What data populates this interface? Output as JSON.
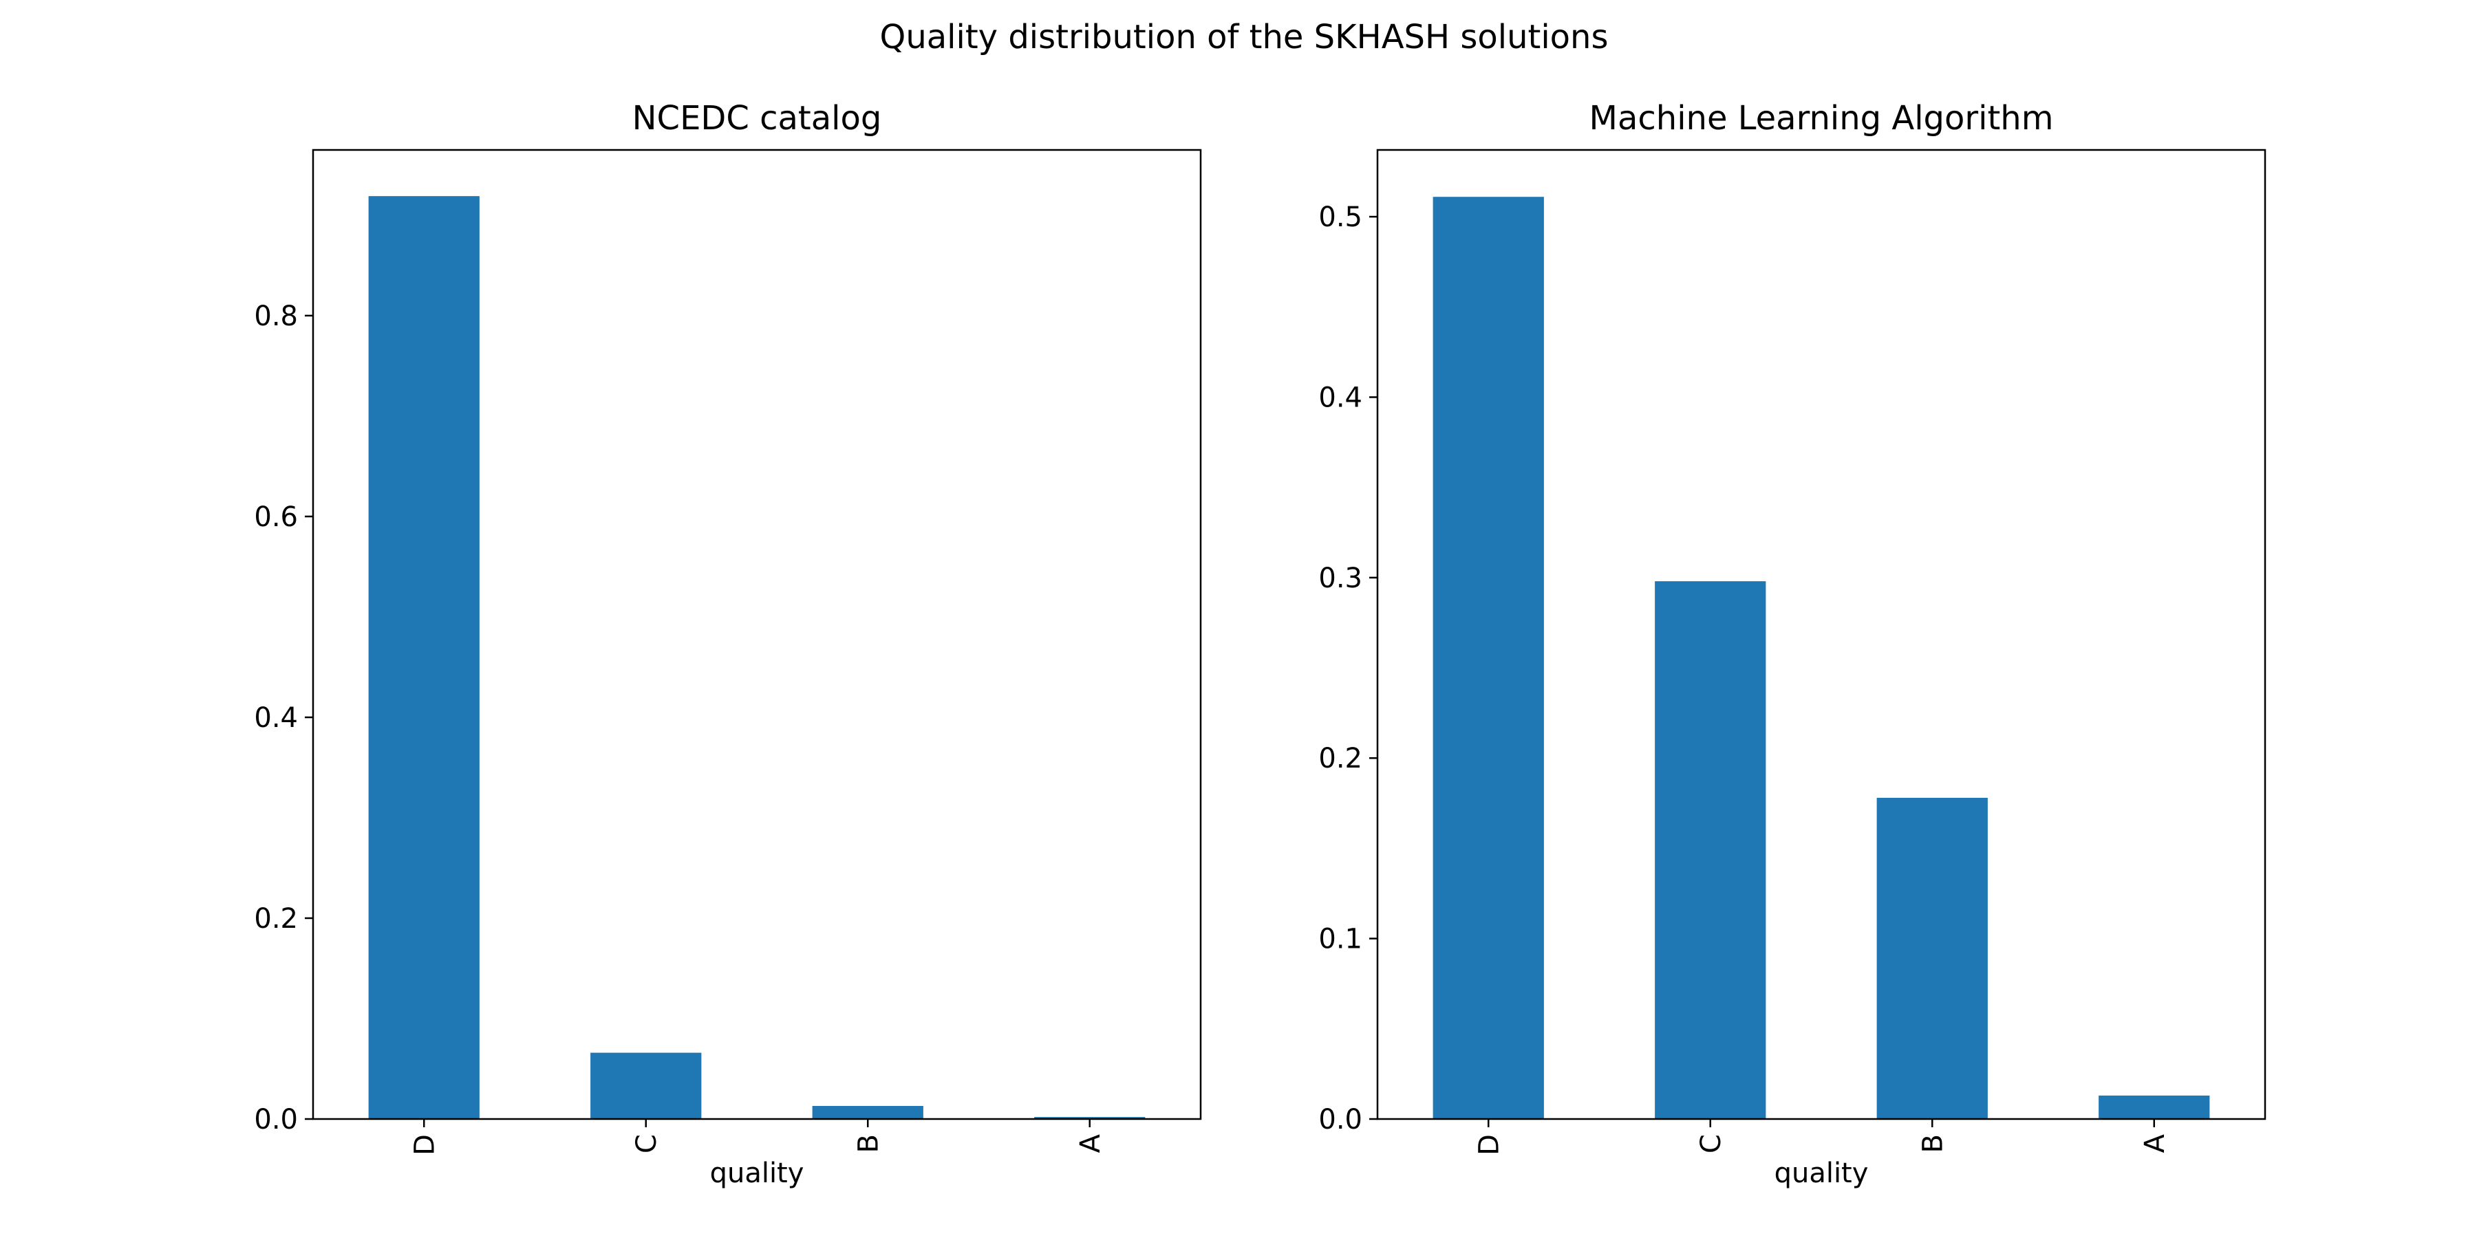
{
  "figure": {
    "suptitle": "Quality distribution of the SKHASH solutions"
  },
  "colors": {
    "bar": "#1f77b4",
    "axes": "#000000",
    "background": "#ffffff"
  },
  "chart_data": [
    {
      "type": "bar",
      "title": "NCEDC catalog",
      "xlabel": "quality",
      "ylabel": "",
      "categories": [
        "D",
        "C",
        "B",
        "A"
      ],
      "values": [
        0.919,
        0.066,
        0.013,
        0.002
      ],
      "ylim": [
        0,
        0.965
      ],
      "yticks": [
        0.0,
        0.2,
        0.4,
        0.6,
        0.8
      ],
      "ytick_labels": [
        "0.0",
        "0.2",
        "0.4",
        "0.6",
        "0.8"
      ],
      "grid": false,
      "legend": "none"
    },
    {
      "type": "bar",
      "title": "Machine Learning Algorithm",
      "xlabel": "quality",
      "ylabel": "",
      "categories": [
        "D",
        "C",
        "B",
        "A"
      ],
      "values": [
        0.511,
        0.298,
        0.178,
        0.013
      ],
      "ylim": [
        0,
        0.537
      ],
      "yticks": [
        0.0,
        0.1,
        0.2,
        0.3,
        0.4,
        0.5
      ],
      "ytick_labels": [
        "0.0",
        "0.1",
        "0.2",
        "0.3",
        "0.4",
        "0.5"
      ],
      "grid": false,
      "legend": "none"
    }
  ]
}
